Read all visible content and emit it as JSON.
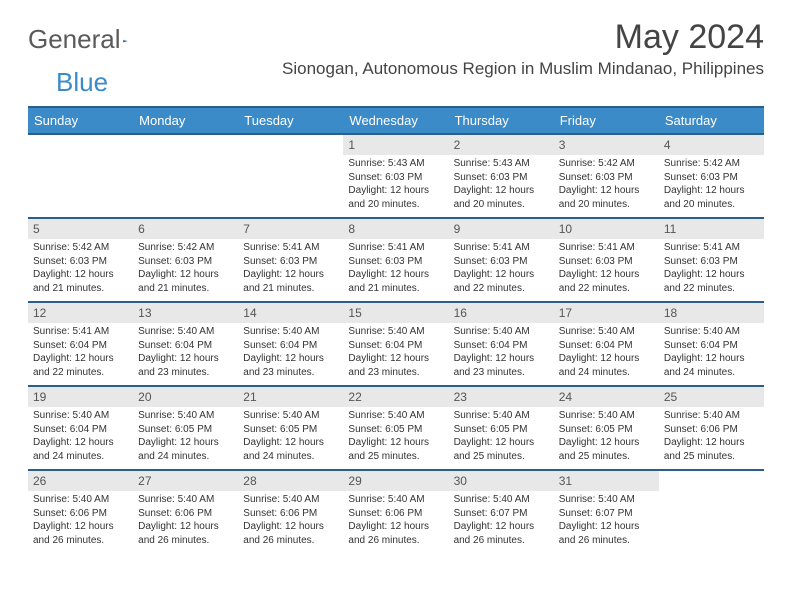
{
  "brand": {
    "text1": "General",
    "text2": "Blue",
    "accent": "#3b8bc9"
  },
  "header": {
    "month_title": "May 2024",
    "location": "Sionogan, Autonomous Region in Muslim Mindanao, Philippines"
  },
  "colors": {
    "header_bg": "#3b8bc9",
    "header_border": "#2b5f8a",
    "daynum_bg": "#e8e8e8",
    "text": "#333333"
  },
  "dow": [
    "Sunday",
    "Monday",
    "Tuesday",
    "Wednesday",
    "Thursday",
    "Friday",
    "Saturday"
  ],
  "weeks": [
    [
      {
        "n": "",
        "sr": "",
        "ss": "",
        "dl1": "",
        "dl2": ""
      },
      {
        "n": "",
        "sr": "",
        "ss": "",
        "dl1": "",
        "dl2": ""
      },
      {
        "n": "",
        "sr": "",
        "ss": "",
        "dl1": "",
        "dl2": ""
      },
      {
        "n": "1",
        "sr": "Sunrise: 5:43 AM",
        "ss": "Sunset: 6:03 PM",
        "dl1": "Daylight: 12 hours",
        "dl2": "and 20 minutes."
      },
      {
        "n": "2",
        "sr": "Sunrise: 5:43 AM",
        "ss": "Sunset: 6:03 PM",
        "dl1": "Daylight: 12 hours",
        "dl2": "and 20 minutes."
      },
      {
        "n": "3",
        "sr": "Sunrise: 5:42 AM",
        "ss": "Sunset: 6:03 PM",
        "dl1": "Daylight: 12 hours",
        "dl2": "and 20 minutes."
      },
      {
        "n": "4",
        "sr": "Sunrise: 5:42 AM",
        "ss": "Sunset: 6:03 PM",
        "dl1": "Daylight: 12 hours",
        "dl2": "and 20 minutes."
      }
    ],
    [
      {
        "n": "5",
        "sr": "Sunrise: 5:42 AM",
        "ss": "Sunset: 6:03 PM",
        "dl1": "Daylight: 12 hours",
        "dl2": "and 21 minutes."
      },
      {
        "n": "6",
        "sr": "Sunrise: 5:42 AM",
        "ss": "Sunset: 6:03 PM",
        "dl1": "Daylight: 12 hours",
        "dl2": "and 21 minutes."
      },
      {
        "n": "7",
        "sr": "Sunrise: 5:41 AM",
        "ss": "Sunset: 6:03 PM",
        "dl1": "Daylight: 12 hours",
        "dl2": "and 21 minutes."
      },
      {
        "n": "8",
        "sr": "Sunrise: 5:41 AM",
        "ss": "Sunset: 6:03 PM",
        "dl1": "Daylight: 12 hours",
        "dl2": "and 21 minutes."
      },
      {
        "n": "9",
        "sr": "Sunrise: 5:41 AM",
        "ss": "Sunset: 6:03 PM",
        "dl1": "Daylight: 12 hours",
        "dl2": "and 22 minutes."
      },
      {
        "n": "10",
        "sr": "Sunrise: 5:41 AM",
        "ss": "Sunset: 6:03 PM",
        "dl1": "Daylight: 12 hours",
        "dl2": "and 22 minutes."
      },
      {
        "n": "11",
        "sr": "Sunrise: 5:41 AM",
        "ss": "Sunset: 6:03 PM",
        "dl1": "Daylight: 12 hours",
        "dl2": "and 22 minutes."
      }
    ],
    [
      {
        "n": "12",
        "sr": "Sunrise: 5:41 AM",
        "ss": "Sunset: 6:04 PM",
        "dl1": "Daylight: 12 hours",
        "dl2": "and 22 minutes."
      },
      {
        "n": "13",
        "sr": "Sunrise: 5:40 AM",
        "ss": "Sunset: 6:04 PM",
        "dl1": "Daylight: 12 hours",
        "dl2": "and 23 minutes."
      },
      {
        "n": "14",
        "sr": "Sunrise: 5:40 AM",
        "ss": "Sunset: 6:04 PM",
        "dl1": "Daylight: 12 hours",
        "dl2": "and 23 minutes."
      },
      {
        "n": "15",
        "sr": "Sunrise: 5:40 AM",
        "ss": "Sunset: 6:04 PM",
        "dl1": "Daylight: 12 hours",
        "dl2": "and 23 minutes."
      },
      {
        "n": "16",
        "sr": "Sunrise: 5:40 AM",
        "ss": "Sunset: 6:04 PM",
        "dl1": "Daylight: 12 hours",
        "dl2": "and 23 minutes."
      },
      {
        "n": "17",
        "sr": "Sunrise: 5:40 AM",
        "ss": "Sunset: 6:04 PM",
        "dl1": "Daylight: 12 hours",
        "dl2": "and 24 minutes."
      },
      {
        "n": "18",
        "sr": "Sunrise: 5:40 AM",
        "ss": "Sunset: 6:04 PM",
        "dl1": "Daylight: 12 hours",
        "dl2": "and 24 minutes."
      }
    ],
    [
      {
        "n": "19",
        "sr": "Sunrise: 5:40 AM",
        "ss": "Sunset: 6:04 PM",
        "dl1": "Daylight: 12 hours",
        "dl2": "and 24 minutes."
      },
      {
        "n": "20",
        "sr": "Sunrise: 5:40 AM",
        "ss": "Sunset: 6:05 PM",
        "dl1": "Daylight: 12 hours",
        "dl2": "and 24 minutes."
      },
      {
        "n": "21",
        "sr": "Sunrise: 5:40 AM",
        "ss": "Sunset: 6:05 PM",
        "dl1": "Daylight: 12 hours",
        "dl2": "and 24 minutes."
      },
      {
        "n": "22",
        "sr": "Sunrise: 5:40 AM",
        "ss": "Sunset: 6:05 PM",
        "dl1": "Daylight: 12 hours",
        "dl2": "and 25 minutes."
      },
      {
        "n": "23",
        "sr": "Sunrise: 5:40 AM",
        "ss": "Sunset: 6:05 PM",
        "dl1": "Daylight: 12 hours",
        "dl2": "and 25 minutes."
      },
      {
        "n": "24",
        "sr": "Sunrise: 5:40 AM",
        "ss": "Sunset: 6:05 PM",
        "dl1": "Daylight: 12 hours",
        "dl2": "and 25 minutes."
      },
      {
        "n": "25",
        "sr": "Sunrise: 5:40 AM",
        "ss": "Sunset: 6:06 PM",
        "dl1": "Daylight: 12 hours",
        "dl2": "and 25 minutes."
      }
    ],
    [
      {
        "n": "26",
        "sr": "Sunrise: 5:40 AM",
        "ss": "Sunset: 6:06 PM",
        "dl1": "Daylight: 12 hours",
        "dl2": "and 26 minutes."
      },
      {
        "n": "27",
        "sr": "Sunrise: 5:40 AM",
        "ss": "Sunset: 6:06 PM",
        "dl1": "Daylight: 12 hours",
        "dl2": "and 26 minutes."
      },
      {
        "n": "28",
        "sr": "Sunrise: 5:40 AM",
        "ss": "Sunset: 6:06 PM",
        "dl1": "Daylight: 12 hours",
        "dl2": "and 26 minutes."
      },
      {
        "n": "29",
        "sr": "Sunrise: 5:40 AM",
        "ss": "Sunset: 6:06 PM",
        "dl1": "Daylight: 12 hours",
        "dl2": "and 26 minutes."
      },
      {
        "n": "30",
        "sr": "Sunrise: 5:40 AM",
        "ss": "Sunset: 6:07 PM",
        "dl1": "Daylight: 12 hours",
        "dl2": "and 26 minutes."
      },
      {
        "n": "31",
        "sr": "Sunrise: 5:40 AM",
        "ss": "Sunset: 6:07 PM",
        "dl1": "Daylight: 12 hours",
        "dl2": "and 26 minutes."
      },
      {
        "n": "",
        "sr": "",
        "ss": "",
        "dl1": "",
        "dl2": ""
      }
    ]
  ]
}
